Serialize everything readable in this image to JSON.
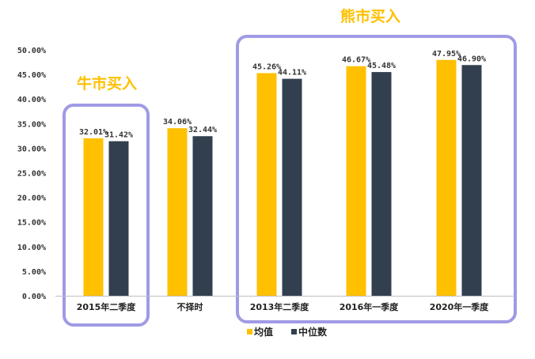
{
  "chart_data": {
    "type": "bar",
    "title": "",
    "xlabel": "",
    "ylabel": "",
    "ylim": [
      0,
      50
    ],
    "yticks": [
      "0.00%",
      "5.00%",
      "10.00%",
      "15.00%",
      "20.00%",
      "25.00%",
      "30.00%",
      "35.00%",
      "40.00%",
      "45.00%",
      "50.00%"
    ],
    "categories": [
      "2015年二季度",
      "不择时",
      "2013年二季度",
      "2016年一季度",
      "2020年一季度"
    ],
    "series": [
      {
        "name": "均值",
        "color": "#FFC000",
        "values": [
          32.01,
          34.06,
          45.26,
          46.67,
          47.95
        ],
        "labels": [
          "32.01%",
          "34.06%",
          "45.26%",
          "46.67%",
          "47.95%"
        ]
      },
      {
        "name": "中位数",
        "color": "#323F4F",
        "values": [
          31.42,
          32.44,
          44.11,
          45.48,
          46.9
        ],
        "labels": [
          "31.42%",
          "32.44%",
          "44.11%",
          "45.48%",
          "46.90%"
        ]
      }
    ],
    "legend_position": "bottom",
    "annotations": [
      {
        "text": "牛市买入",
        "color": "#FFC000",
        "groups": [
          0
        ]
      },
      {
        "text": "熊市买入",
        "color": "#FFC000",
        "groups": [
          2,
          3,
          4
        ]
      }
    ],
    "highlight_box_color": "#8E8AE0"
  }
}
